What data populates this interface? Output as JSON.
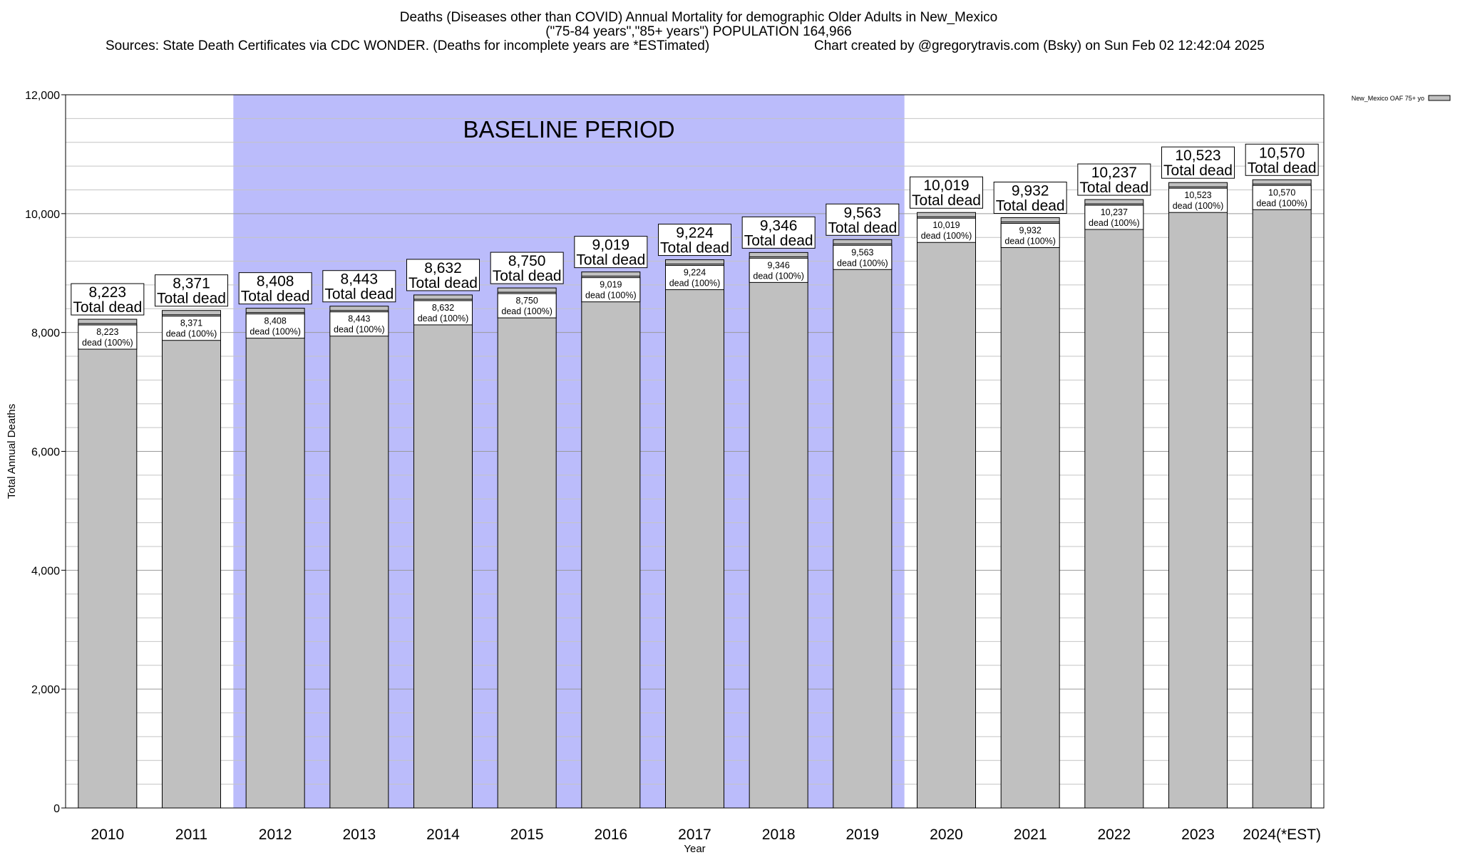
{
  "header": {
    "title_line1": "Deaths (Diseases other than COVID) Annual Mortality for demographic Older Adults in New_Mexico",
    "title_line2": "(\"75-84 years\",\"85+ years\") POPULATION 164,966",
    "sources": "Sources: State Death Certificates via CDC WONDER. (Deaths for incomplete years are *ESTimated)",
    "credit": "Chart created by @gregorytravis.com (Bsky) on Sun Feb 02 12:42:04 2025"
  },
  "chart_data": {
    "type": "bar",
    "xlabel": "Year",
    "ylabel": "Total Annual Deaths",
    "ylim": [
      0,
      12000
    ],
    "yticks": [
      0,
      2000,
      4000,
      6000,
      8000,
      10000,
      12000
    ],
    "ytick_labels": [
      "0",
      "2,000",
      "4,000",
      "6,000",
      "8,000",
      "10,000",
      "12,000"
    ],
    "minor_gridlines": true,
    "categories": [
      "2010",
      "2011",
      "2012",
      "2013",
      "2014",
      "2015",
      "2016",
      "2017",
      "2018",
      "2019",
      "2020",
      "2021",
      "2022",
      "2023",
      "2024(*EST)"
    ],
    "series": [
      {
        "name": "New_Mexico OAF 75+ yo",
        "values": [
          8223,
          8371,
          8408,
          8443,
          8632,
          8750,
          9019,
          9224,
          9346,
          9563,
          10019,
          9932,
          10237,
          10523,
          10570
        ],
        "value_labels": [
          "8,223",
          "8,371",
          "8,408",
          "8,443",
          "8,632",
          "8,750",
          "9,019",
          "9,224",
          "9,346",
          "9,563",
          "10,019",
          "9,932",
          "10,237",
          "10,523",
          "10,570"
        ],
        "color": "#c0c0c0"
      }
    ],
    "total_label_suffix": "Total dead",
    "inner_label_suffix": "dead (100%)",
    "shaded_region": {
      "label": "BASELINE PERIOD",
      "from": "2012",
      "to": "2019",
      "color": "#bbbcfb"
    },
    "legend": {
      "position": "top-right",
      "entries": [
        "New_Mexico OAF 75+ yo"
      ]
    }
  }
}
